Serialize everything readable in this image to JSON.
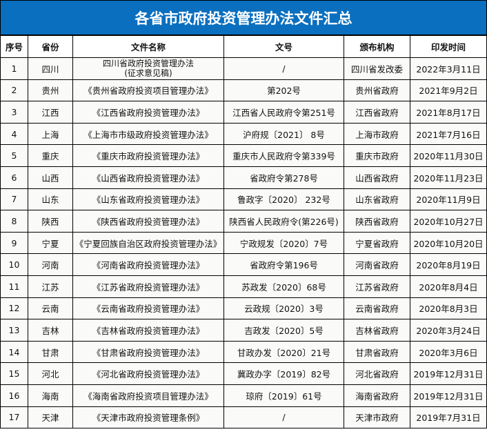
{
  "title": "各省市政府投资管理办法文件汇总",
  "columns": [
    "序号",
    "省份",
    "文件名称",
    "文号",
    "颁布机构",
    "印发时间"
  ],
  "rows": [
    [
      "1",
      "四川",
      "四川省政府投资管理办法\n(征求意见稿)",
      "/",
      "四川省发改委",
      "2022年3月11日"
    ],
    [
      "2",
      "贵州",
      "《贵州省政府投资项目管理办法》",
      "第202号",
      "贵州省政府",
      "2021年9月2日"
    ],
    [
      "3",
      "江西",
      "《江西省政府投资管理办法》",
      "江西省人民政府令第251号",
      "江西省政府",
      "2021年8月17日"
    ],
    [
      "4",
      "上海",
      "《上海市市级政府投资管理办法》",
      "沪府规〔2021〕 8号",
      "上海市政府",
      "2021年7月16日"
    ],
    [
      "5",
      "重庆",
      "《重庆市政府投资管理办法》",
      "重庆市人民政府令第339号",
      "重庆市政府",
      "2020年11月30日"
    ],
    [
      "6",
      "山西",
      "《山西省政府投资管理办法》",
      "省政府令第278号",
      "山西省政府",
      "2020年11月23日"
    ],
    [
      "7",
      "山东",
      "《山东省政府投资管理办法》",
      "鲁政字〔2020〕 232号",
      "山东省政府",
      "2020年11月9日"
    ],
    [
      "8",
      "陕西",
      "《陕西省政府投资管理办法》",
      "陕西省人民政府令(第226号)",
      "陕西省政府",
      "2020年10月27日"
    ],
    [
      "9",
      "宁夏",
      "《宁夏回族自治区政府投资管理办法》",
      "宁政规发〔2020〕7号",
      "宁夏省政府",
      "2020年10月20日"
    ],
    [
      "10",
      "河南",
      "《河南省政府投资管理办法》",
      "省政府令第196号",
      "河南省政府",
      "2020年8月19日"
    ],
    [
      "11",
      "江苏",
      "《江苏省政府投资管理办法》",
      "苏政发〔2020〕68号",
      "江苏省政府",
      "2020年8月4日"
    ],
    [
      "12",
      "云南",
      "《云南省政府投资管理办法》",
      "云政规〔2020〕3号",
      "云南省政府",
      "2020年8月3日"
    ],
    [
      "13",
      "吉林",
      "《吉林省政府投资管理办法》",
      "吉政发〔2020〕5号",
      "吉林省政府",
      "2020年3月24日"
    ],
    [
      "14",
      "甘肃",
      "《甘肃省政府投资管理办法》",
      "甘政办发〔2020〕21号",
      "甘肃省政府",
      "2020年3月6日"
    ],
    [
      "15",
      "河北",
      "《河北省政府投资管理办法》",
      "冀政办字〔2019〕82号",
      "河北省政府",
      "2019年12月31日"
    ],
    [
      "16",
      "海南",
      "《海南省政府投资项目管理办法》",
      "琼府〔2019〕61号",
      "海南省政府",
      "2019年12月31日"
    ],
    [
      "17",
      "天津",
      "《天津市政府投资管理条例》",
      "/",
      "天津市政府",
      "2019年7月31日"
    ]
  ]
}
